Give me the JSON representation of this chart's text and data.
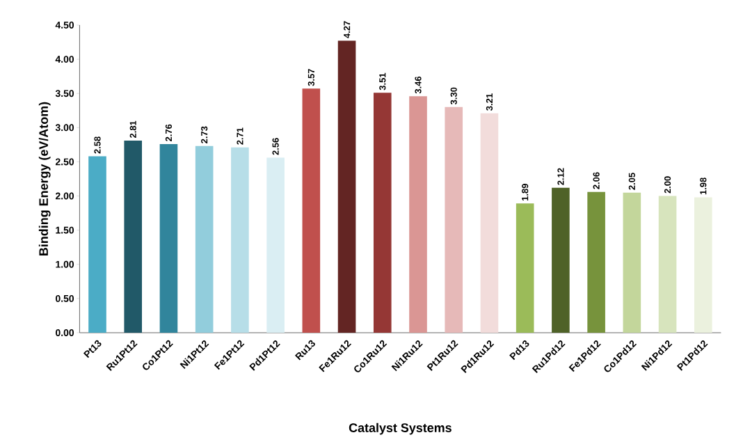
{
  "chart_data": {
    "type": "bar",
    "xlabel": "Catalyst Systems",
    "ylabel": "Binding Energy (eV/Atom)",
    "categories": [
      "Pt13",
      "Ru1Pt12",
      "Co1Pt12",
      "Ni1Pt12",
      "Fe1Pt12",
      "Pd1Pt12",
      "Ru13",
      "Fe1Ru12",
      "Co1Ru12",
      "Ni1Ru12",
      "Pt1Ru12",
      "Pd1Ru12",
      "Pd13",
      "Ru1Pd12",
      "Fe1Pd12",
      "Co1Pd12",
      "Ni1Pd12",
      "Pt1Pd12"
    ],
    "values": [
      2.58,
      2.81,
      2.76,
      2.73,
      2.71,
      2.56,
      3.57,
      4.27,
      3.51,
      3.46,
      3.3,
      3.21,
      1.89,
      2.12,
      2.06,
      2.05,
      2.0,
      1.98
    ],
    "value_labels": [
      "2.58",
      "2.81",
      "2.76",
      "2.73",
      "2.71",
      "2.56",
      "3.57",
      "4.27",
      "3.51",
      "3.46",
      "3.30",
      "3.21",
      "1.89",
      "2.12",
      "2.06",
      "2.05",
      "2.00",
      "1.98"
    ],
    "colors": [
      "#4bacc6",
      "#215968",
      "#31859c",
      "#92cddc",
      "#b7dee8",
      "#daeef3",
      "#c0504d",
      "#632523",
      "#953735",
      "#da9694",
      "#e6b9b8",
      "#f2dcdb",
      "#9bbb59",
      "#4f6228",
      "#77933c",
      "#c3d69b",
      "#d7e4bd",
      "#ebf1de"
    ],
    "ylim": [
      0,
      4.5
    ],
    "yticks": [
      {
        "value": 0,
        "label": "0.00"
      },
      {
        "value": 0.5,
        "label": "0.50"
      },
      {
        "value": 1,
        "label": "1.00"
      },
      {
        "value": 1.5,
        "label": "1.50"
      },
      {
        "value": 2,
        "label": "2.00"
      },
      {
        "value": 2.5,
        "label": "2.50"
      },
      {
        "value": 3,
        "label": "3.00"
      },
      {
        "value": 3.5,
        "label": "3.50"
      },
      {
        "value": 4,
        "label": "4.00"
      },
      {
        "value": 4.5,
        "label": "4.50"
      }
    ]
  }
}
